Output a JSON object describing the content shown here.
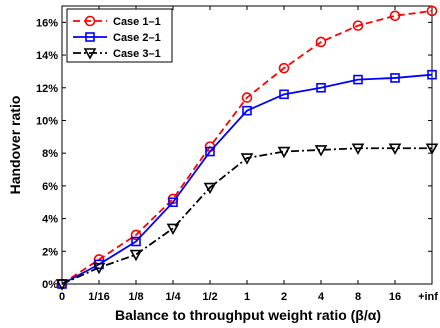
{
  "chart_data": {
    "type": "line",
    "xlabel": "Balance to throughput weight ratio (β/α)",
    "ylabel": "Handover ratio",
    "categories": [
      "0",
      "1/16",
      "1/8",
      "1/4",
      "1/2",
      "1",
      "2",
      "4",
      "8",
      "16",
      "+inf"
    ],
    "y_ticks": [
      "0%",
      "2%",
      "4%",
      "6%",
      "8%",
      "10%",
      "12%",
      "14%",
      "16%"
    ],
    "ylim": [
      0,
      17
    ],
    "grid": false,
    "legend_position": "top-left",
    "series": [
      {
        "name": "Case 1–1",
        "color": "#ff0000",
        "line_style": "dashed",
        "marker": "circle",
        "values": [
          0.0,
          1.5,
          3.0,
          5.2,
          8.4,
          11.4,
          13.2,
          14.8,
          15.8,
          16.4,
          16.7
        ]
      },
      {
        "name": "Case 2–1",
        "color": "#0000ff",
        "line_style": "solid",
        "marker": "square",
        "values": [
          0.0,
          1.2,
          2.6,
          5.0,
          8.1,
          10.6,
          11.6,
          12.0,
          12.5,
          12.6,
          12.8
        ]
      },
      {
        "name": "Case 3–1",
        "color": "#000000",
        "line_style": "dashdot",
        "marker": "triangle-down",
        "values": [
          0.0,
          1.0,
          1.8,
          3.4,
          5.9,
          7.7,
          8.1,
          8.2,
          8.3,
          8.3,
          8.3
        ]
      }
    ]
  }
}
